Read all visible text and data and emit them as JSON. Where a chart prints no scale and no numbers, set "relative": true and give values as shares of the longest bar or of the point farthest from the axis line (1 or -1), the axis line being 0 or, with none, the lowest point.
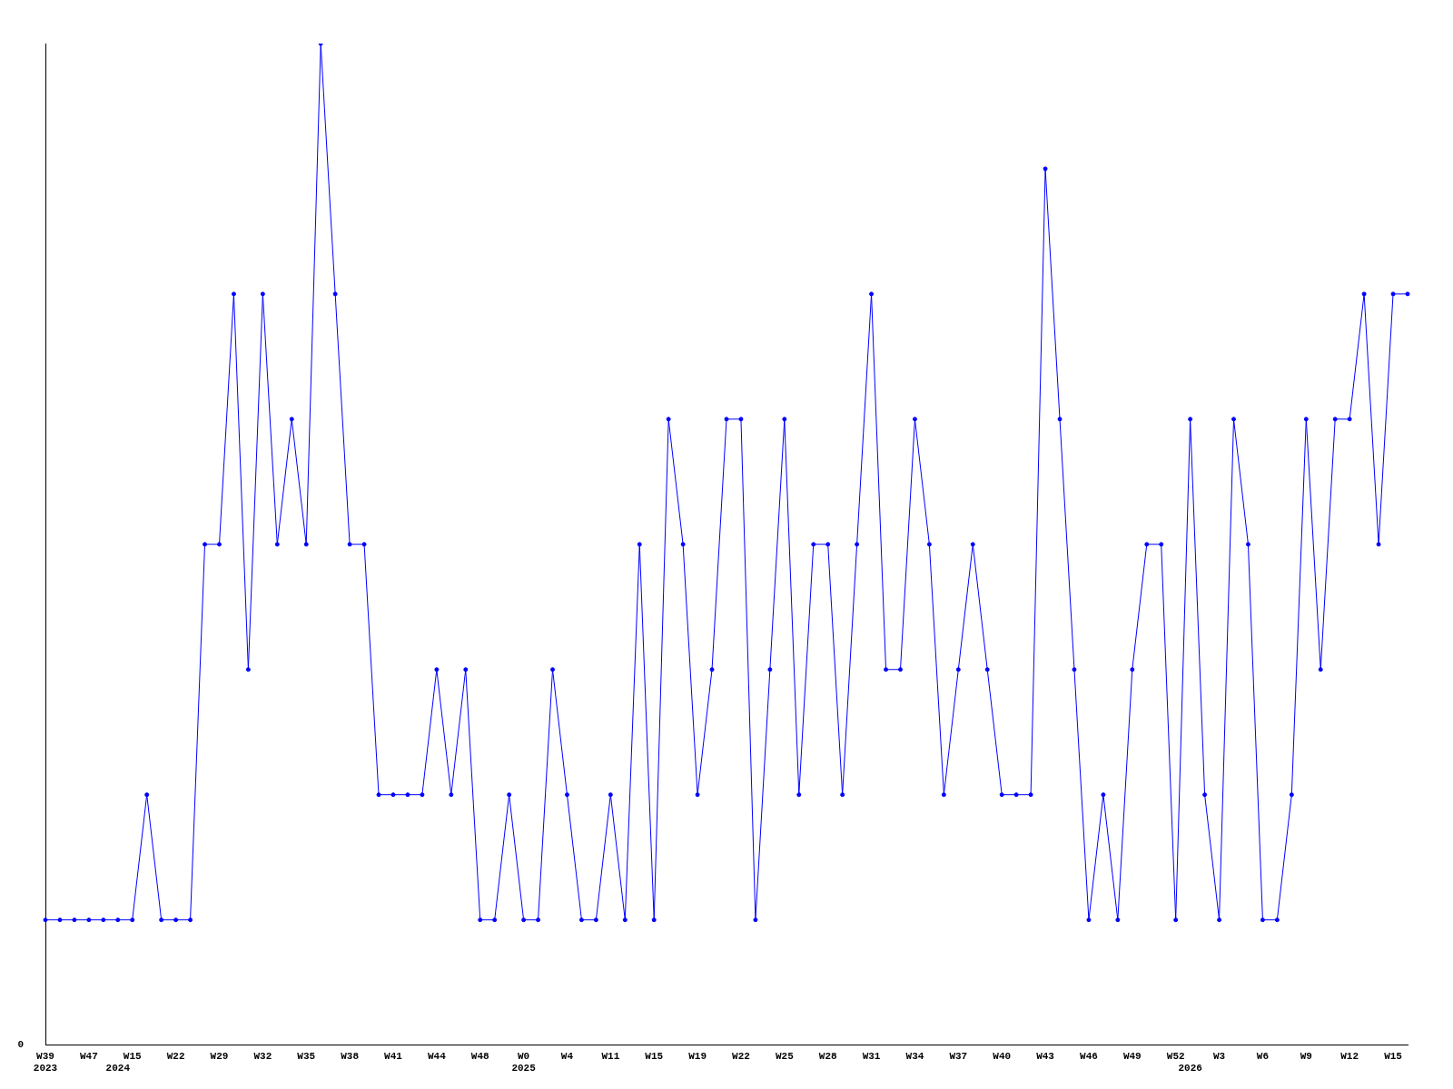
{
  "chart_data": {
    "type": "line",
    "relative": true,
    "color": "#0000ff",
    "marker": "circle",
    "grid": false,
    "legend": false,
    "annotations": [
      "0"
    ],
    "categories": [
      "W39\n2023",
      null,
      null,
      "W47",
      null,
      "\n2024",
      "W15",
      null,
      null,
      "W22",
      null,
      null,
      "W29",
      null,
      null,
      "W32",
      null,
      null,
      "W35",
      null,
      null,
      "W38",
      null,
      null,
      "W41",
      null,
      null,
      "W44",
      null,
      null,
      "W48",
      null,
      null,
      "W0\n2025",
      null,
      null,
      "W4",
      null,
      null,
      "W11",
      null,
      null,
      "W15",
      null,
      null,
      "W19",
      null,
      null,
      "W22",
      null,
      null,
      "W25",
      null,
      null,
      "W28",
      null,
      null,
      "W31",
      null,
      null,
      "W34",
      null,
      null,
      "W37",
      null,
      null,
      "W40",
      null,
      null,
      "W43",
      null,
      null,
      "W46",
      null,
      null,
      "W49",
      null,
      null,
      "W52",
      "\n2026",
      null,
      "W3",
      null,
      null,
      "W6",
      null,
      null,
      "W9",
      null,
      null,
      "W12",
      null,
      null,
      "W15",
      null
    ],
    "values": [
      0.125,
      0.125,
      0.125,
      0.125,
      0.125,
      0.125,
      0.125,
      0.25,
      0.125,
      0.125,
      0.125,
      0.5,
      0.5,
      0.75,
      0.375,
      0.75,
      0.5,
      0.625,
      0.5,
      1,
      0.75,
      0.5,
      0.5,
      0.25,
      0.25,
      0.25,
      0.25,
      0.375,
      0.25,
      0.375,
      0.125,
      0.125,
      0.25,
      0.125,
      0.125,
      0.375,
      0.25,
      0.125,
      0.125,
      0.25,
      0.125,
      0.5,
      0.125,
      0.625,
      0.5,
      0.25,
      0.375,
      0.625,
      0.625,
      0.125,
      0.375,
      0.625,
      0.25,
      0.5,
      0.5,
      0.25,
      0.5,
      0.75,
      0.375,
      0.375,
      0.625,
      0.5,
      0.25,
      0.375,
      0.5,
      0.375,
      0.25,
      0.25,
      0.25,
      0.875,
      0.625,
      0.375,
      0.125,
      0.25,
      0.125,
      0.375,
      0.5,
      0.5,
      0.125,
      0.625,
      0.25,
      0.125,
      0.625,
      0.5,
      0.125,
      0.125,
      0.25,
      0.625,
      0.375,
      0.625,
      0.625,
      0.75,
      0.5,
      0.75,
      0.75
    ]
  }
}
